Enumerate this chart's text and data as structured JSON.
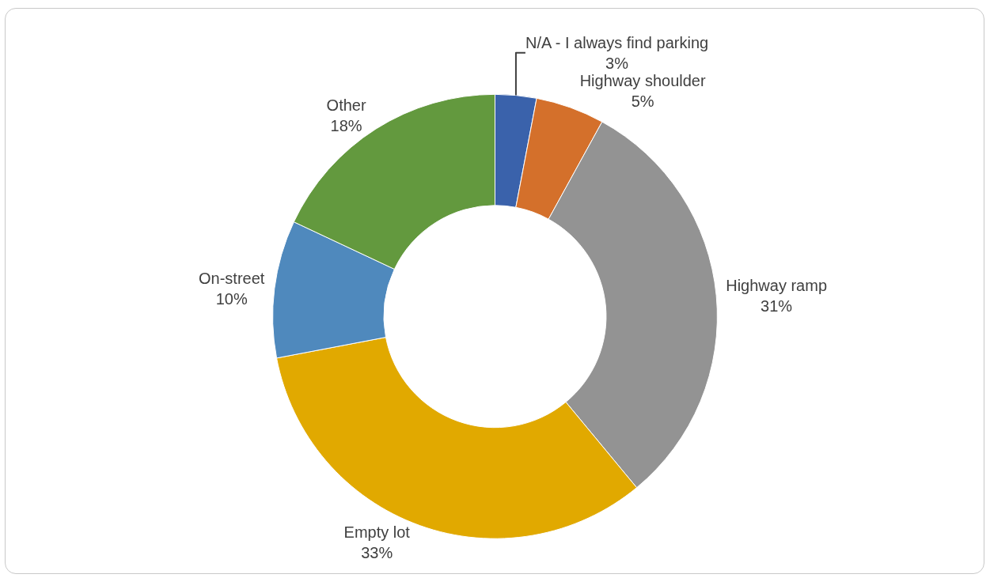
{
  "chart_data": {
    "type": "donut",
    "categories": [
      "N/A - I always find parking",
      "Highway shoulder",
      "Highway ramp",
      "Empty lot",
      "On-street",
      "Other"
    ],
    "values": [
      3,
      5,
      31,
      33,
      10,
      18
    ],
    "value_labels": [
      "3%",
      "5%",
      "31%",
      "33%",
      "10%",
      "18%"
    ],
    "colors": [
      "#3a62ab",
      "#d4702b",
      "#939393",
      "#e1a900",
      "#4f89bd",
      "#63993e"
    ],
    "legend": false
  }
}
